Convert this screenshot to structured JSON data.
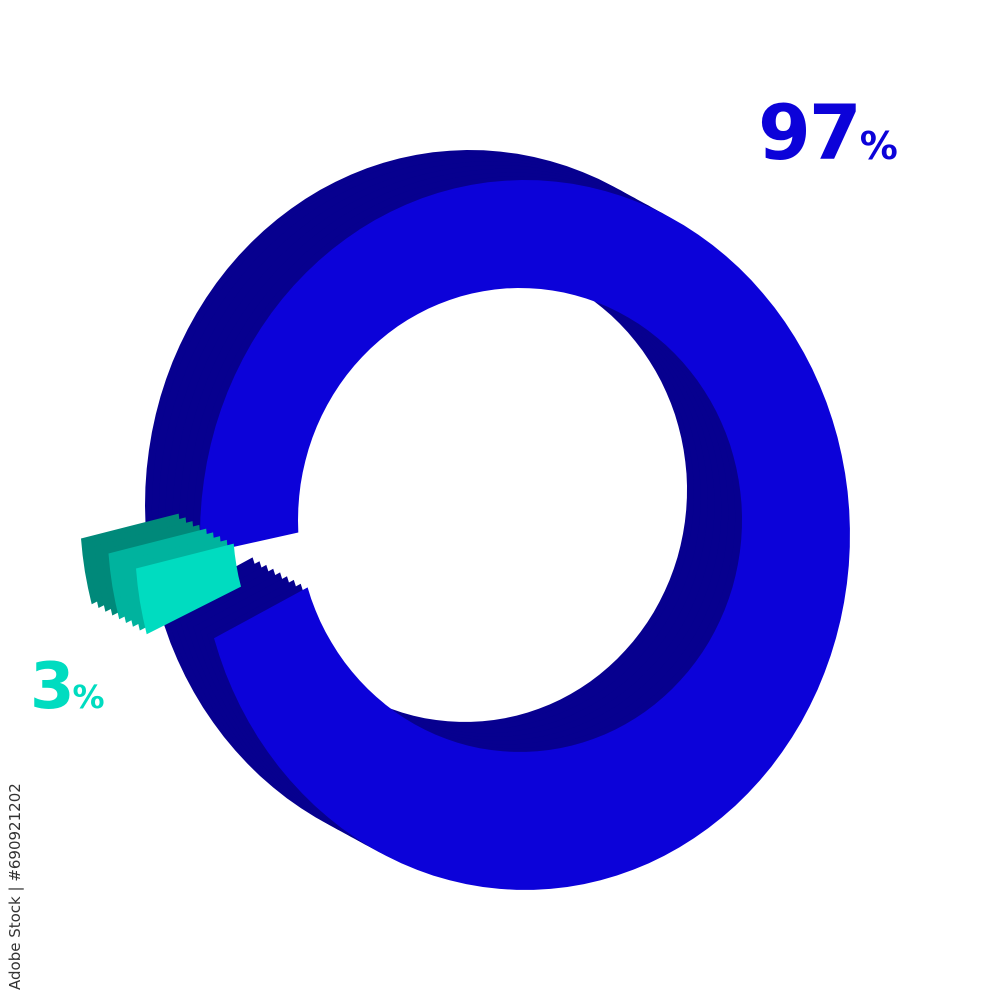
{
  "chart_data": {
    "type": "pie",
    "style": "3d-donut",
    "categories": [
      "97%",
      "3%"
    ],
    "values": [
      97,
      3
    ],
    "labels": [
      {
        "number": "97",
        "unit": "%"
      },
      {
        "number": "3",
        "unit": "%"
      }
    ],
    "colors": {
      "main_front": "#0c02d9",
      "main_side": "#07008f",
      "small_front": "#00dcc0",
      "small_side": "#00897a",
      "small_top": "#00b39e"
    },
    "exploded": "3%",
    "legend": "none"
  },
  "watermark": {
    "credit": "Adobe Stock | #690921202"
  }
}
